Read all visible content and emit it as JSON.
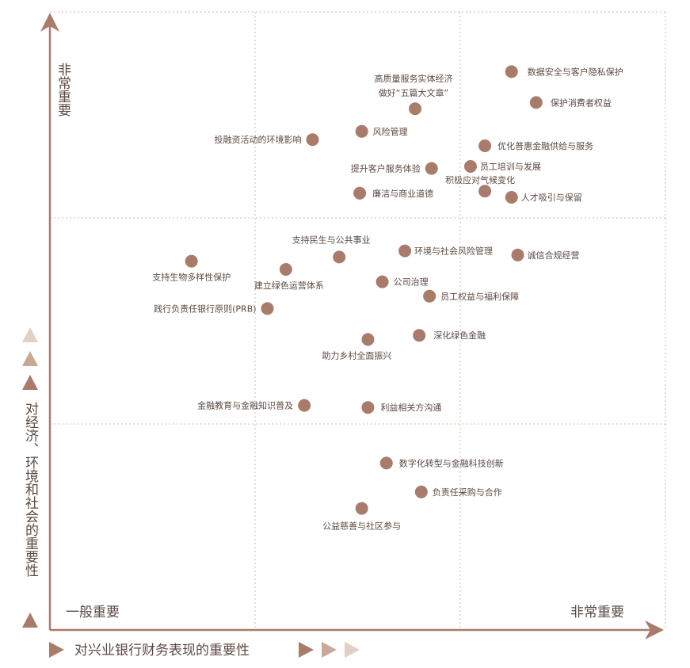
{
  "chart_data": {
    "type": "scatter",
    "xlabel": "对兴业银行财务表现的重要性",
    "ylabel": "对经济、环境和社会的重要性",
    "xlim": [
      0,
      3
    ],
    "ylim": [
      0,
      3
    ],
    "grid": true,
    "corner_labels": {
      "y_top": "非常重要",
      "x_left": "一般重要",
      "x_right": "非常重要"
    },
    "colors": {
      "point": "#a97b6b",
      "axis": "#a97b6b",
      "grid": "#d0b8ae",
      "triangle_light": "#e2cfc6",
      "triangle_mid": "#c9a896",
      "triangle_dark": "#a97b6b"
    },
    "points": [
      {
        "label": "数据安全与客户隐私保护",
        "x": 2.25,
        "y": 2.71
      },
      {
        "label": "保护消费者权益",
        "x": 2.37,
        "y": 2.56
      },
      {
        "label": "高质量服务实体经济\n做好“五篇大文章”",
        "x": 1.78,
        "y": 2.53
      },
      {
        "label": "风险管理",
        "x": 1.52,
        "y": 2.42
      },
      {
        "label": "投融资活动的环境影响",
        "x": 1.28,
        "y": 2.38
      },
      {
        "label": "优化普惠金融供给与服务",
        "x": 2.12,
        "y": 2.35
      },
      {
        "label": "员工培训与发展",
        "x": 2.05,
        "y": 2.25
      },
      {
        "label": "提升客户服务体验",
        "x": 1.86,
        "y": 2.24
      },
      {
        "label": "积极应对气候变化",
        "x": 2.12,
        "y": 2.13
      },
      {
        "label": "廉洁与商业道德",
        "x": 1.51,
        "y": 2.12
      },
      {
        "label": "人才吸引与保留",
        "x": 2.25,
        "y": 2.1
      },
      {
        "label": "支持民生与公共事业",
        "x": 1.41,
        "y": 1.81
      },
      {
        "label": "环境与社会风险管理",
        "x": 1.73,
        "y": 1.84
      },
      {
        "label": "诚信合规经营",
        "x": 2.28,
        "y": 1.82
      },
      {
        "label": "支持生物多样性保护",
        "x": 0.69,
        "y": 1.79
      },
      {
        "label": "建立绿色运营体系",
        "x": 1.15,
        "y": 1.75
      },
      {
        "label": "公司治理",
        "x": 1.62,
        "y": 1.69
      },
      {
        "label": "员工权益与福利保障",
        "x": 1.85,
        "y": 1.62
      },
      {
        "label": "践行负责任银行原则(PRB)",
        "x": 1.06,
        "y": 1.56
      },
      {
        "label": "助力乡村全面振兴",
        "x": 1.55,
        "y": 1.41
      },
      {
        "label": "深化绿色金融",
        "x": 1.8,
        "y": 1.43
      },
      {
        "label": "金融教育与金融知识普及",
        "x": 1.24,
        "y": 1.09
      },
      {
        "label": "利益相关方沟通",
        "x": 1.55,
        "y": 1.08
      },
      {
        "label": "数字化转型与金融科技创新",
        "x": 1.64,
        "y": 0.81
      },
      {
        "label": "负责任采购与合作",
        "x": 1.81,
        "y": 0.67
      },
      {
        "label": "公益慈善与社区参与",
        "x": 1.52,
        "y": 0.59
      }
    ]
  }
}
